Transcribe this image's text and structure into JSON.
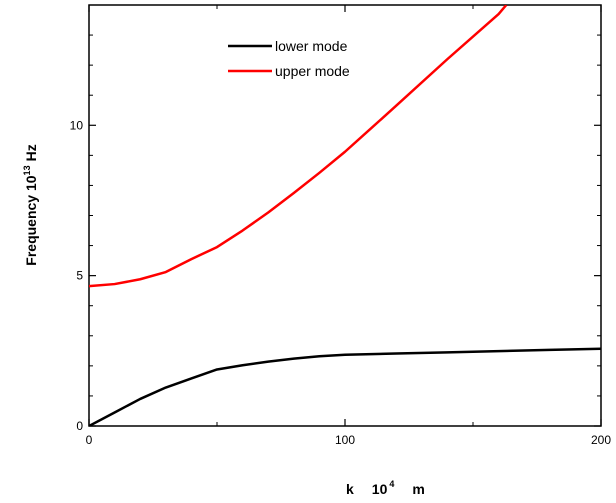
{
  "chart_data": {
    "type": "line",
    "xlabel": "k 10^4 m",
    "xlabel_parts": {
      "base": "k",
      "mantissa": "10",
      "exponent": "4",
      "unit": "m"
    },
    "ylabel": "Frequency 10^13 Hz",
    "ylabel_parts": {
      "base": "Frequency 10",
      "exponent": "13",
      "unit": "Hz"
    },
    "xlim": [
      0,
      200
    ],
    "ylim": [
      0,
      14
    ],
    "x_ticks": [
      0,
      100,
      200
    ],
    "x_tick_labels": [
      "0",
      "100",
      "200"
    ],
    "y_ticks": [
      0,
      5,
      10
    ],
    "y_tick_labels": [
      "0",
      "5",
      "10"
    ],
    "grid": false,
    "legend_placement": "top-center",
    "series": [
      {
        "name": "lower mode",
        "color": "#000000",
        "x": [
          0,
          10,
          20,
          30,
          40,
          50,
          60,
          70,
          80,
          90,
          100,
          120,
          140,
          160,
          180,
          200
        ],
        "y": [
          0.0,
          0.45,
          0.9,
          1.28,
          1.58,
          1.88,
          2.02,
          2.14,
          2.24,
          2.32,
          2.37,
          2.41,
          2.45,
          2.49,
          2.53,
          2.57
        ]
      },
      {
        "name": "upper mode",
        "color": "#ff0000",
        "x": [
          0,
          10,
          20,
          30,
          40,
          50,
          60,
          70,
          80,
          90,
          100,
          120,
          140,
          160,
          163
        ],
        "y": [
          4.65,
          4.72,
          4.88,
          5.12,
          5.55,
          5.95,
          6.5,
          7.1,
          7.75,
          8.42,
          9.12,
          10.65,
          12.2,
          13.7,
          14.0
        ]
      }
    ]
  }
}
